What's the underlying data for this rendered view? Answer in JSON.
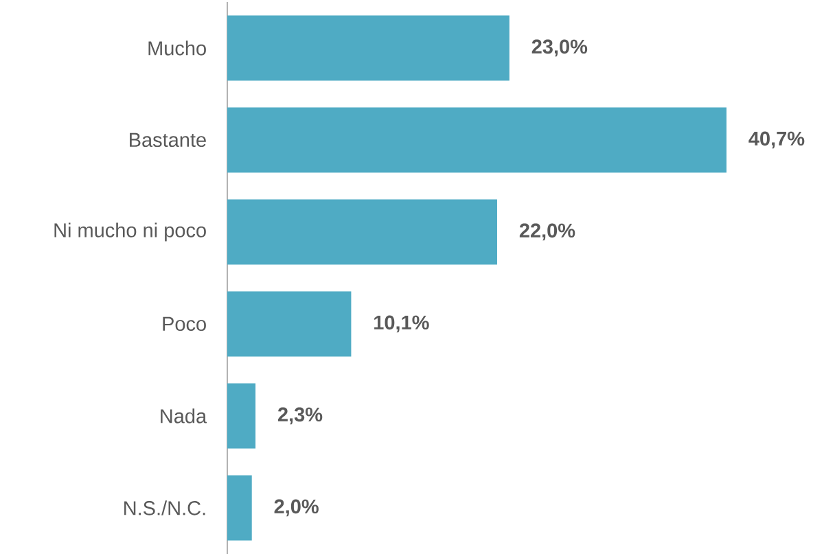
{
  "chart_data": {
    "type": "bar",
    "orientation": "horizontal",
    "categories": [
      "Mucho",
      "Bastante",
      "Ni mucho ni poco",
      "Poco",
      "Nada",
      "N.S./N.C."
    ],
    "values": [
      23.0,
      40.7,
      22.0,
      10.1,
      2.3,
      2.0
    ],
    "color": "#4fabc4",
    "value_labels": [
      "23,0%",
      "40,7%",
      "22,0%",
      "10,1%",
      "2,3%",
      "2,0%"
    ]
  }
}
